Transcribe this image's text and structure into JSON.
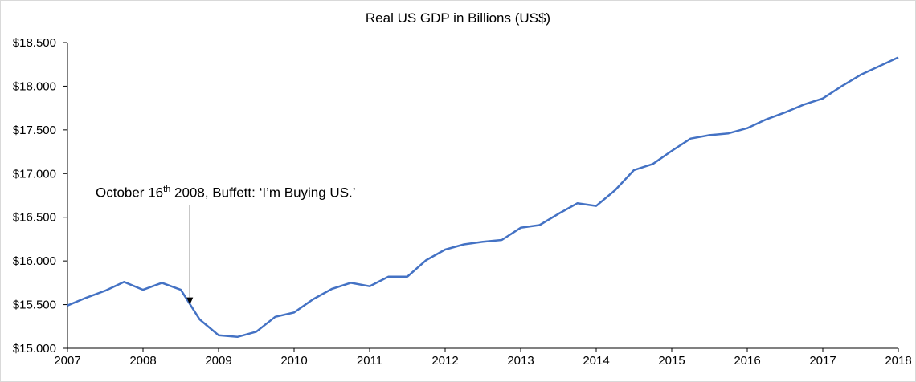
{
  "chart_data": {
    "type": "line",
    "title": "Real US GDP in Billions (US$)",
    "xlabel": "",
    "ylabel": "",
    "x_ticks": [
      "2007",
      "2008",
      "2009",
      "2010",
      "2011",
      "2012",
      "2013",
      "2014",
      "2015",
      "2016",
      "2017",
      "2018"
    ],
    "y_ticks": [
      "$15.000",
      "$15.500",
      "$16.000",
      "$16.500",
      "$17.000",
      "$17.500",
      "$18.000",
      "$18.500"
    ],
    "xlim": [
      2007.0,
      2018.0
    ],
    "ylim": [
      15000,
      18500
    ],
    "grid": false,
    "series": [
      {
        "color": "#4472c4",
        "points": [
          [
            2007.0,
            15490
          ],
          [
            2007.25,
            15580
          ],
          [
            2007.5,
            15660
          ],
          [
            2007.75,
            15760
          ],
          [
            2008.0,
            15670
          ],
          [
            2008.25,
            15750
          ],
          [
            2008.5,
            15670
          ],
          [
            2008.75,
            15330
          ],
          [
            2009.0,
            15150
          ],
          [
            2009.25,
            15130
          ],
          [
            2009.5,
            15190
          ],
          [
            2009.75,
            15360
          ],
          [
            2010.0,
            15410
          ],
          [
            2010.25,
            15560
          ],
          [
            2010.5,
            15680
          ],
          [
            2010.75,
            15750
          ],
          [
            2011.0,
            15710
          ],
          [
            2011.25,
            15820
          ],
          [
            2011.5,
            15820
          ],
          [
            2011.75,
            16010
          ],
          [
            2012.0,
            16130
          ],
          [
            2012.25,
            16190
          ],
          [
            2012.5,
            16220
          ],
          [
            2012.75,
            16240
          ],
          [
            2013.0,
            16380
          ],
          [
            2013.25,
            16410
          ],
          [
            2013.5,
            16540
          ],
          [
            2013.75,
            16660
          ],
          [
            2014.0,
            16630
          ],
          [
            2014.25,
            16810
          ],
          [
            2014.5,
            17040
          ],
          [
            2014.75,
            17110
          ],
          [
            2015.0,
            17260
          ],
          [
            2015.25,
            17400
          ],
          [
            2015.5,
            17440
          ],
          [
            2015.75,
            17460
          ],
          [
            2016.0,
            17520
          ],
          [
            2016.25,
            17620
          ],
          [
            2016.5,
            17700
          ],
          [
            2016.75,
            17790
          ],
          [
            2017.0,
            17860
          ],
          [
            2017.25,
            18000
          ],
          [
            2017.5,
            18130
          ],
          [
            2017.75,
            18230
          ],
          [
            2018.0,
            18330
          ]
        ]
      }
    ],
    "annotation": {
      "pre": "October 16",
      "sup": "th",
      "post": " 2008, Buffett: ‘I’m Buying US.’",
      "x": 2008.62,
      "y": 15500
    }
  }
}
